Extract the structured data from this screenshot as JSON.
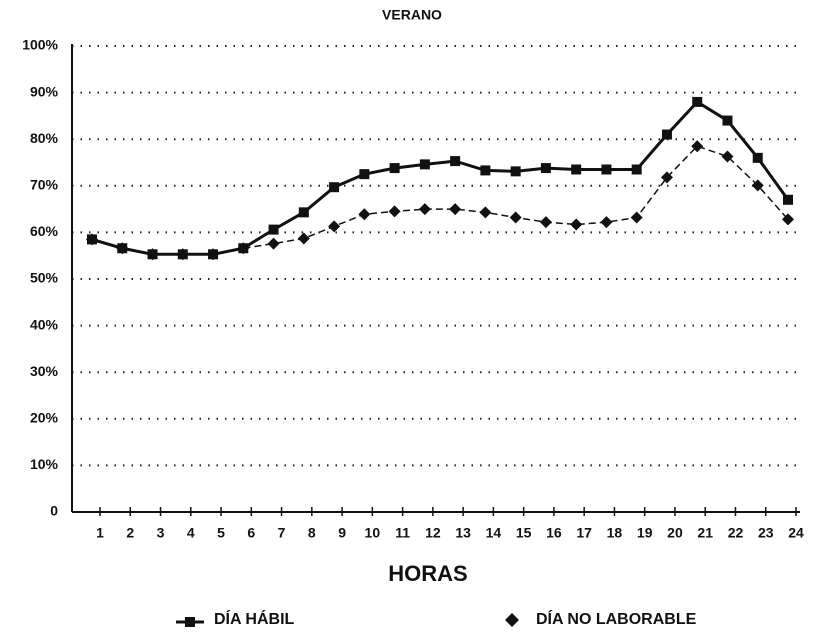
{
  "chart_data": {
    "type": "line",
    "title": "VERANO",
    "x_label": "HORAS",
    "categories": [
      "1",
      "2",
      "3",
      "4",
      "5",
      "6",
      "7",
      "8",
      "9",
      "10",
      "11",
      "12",
      "13",
      "14",
      "15",
      "16",
      "17",
      "18",
      "19",
      "20",
      "21",
      "22",
      "23",
      "24"
    ],
    "series": [
      {
        "name": "DÍA HÁBIL",
        "color": "#111111",
        "marker": "square",
        "values": [
          58.5,
          56.6,
          55.3,
          55.3,
          55.3,
          56.6,
          60.6,
          64.3,
          69.7,
          72.5,
          73.8,
          74.6,
          75.3,
          73.3,
          73.1,
          73.8,
          73.5,
          73.5,
          73.5,
          81,
          88,
          84,
          76,
          67
        ]
      },
      {
        "name": "DÍA NO LABORABLE",
        "color": "#111111",
        "marker": "diamond",
        "values": [
          58.5,
          56.6,
          55.3,
          55.3,
          55.3,
          56.6,
          57.6,
          58.7,
          61.3,
          63.9,
          64.5,
          65,
          65,
          64.3,
          63.2,
          62.2,
          61.7,
          62.2,
          63.2,
          71.8,
          78.5,
          76.3,
          70.1,
          62.8
        ]
      }
    ],
    "ylim": [
      0,
      100
    ],
    "yticks": [
      0,
      {
        "value": 10,
        "label": "10%"
      },
      {
        "value": 20,
        "label": "20%"
      },
      {
        "value": 30,
        "label": "30%"
      },
      {
        "value": 40,
        "label": "40%"
      },
      {
        "value": 50,
        "label": "50%"
      },
      {
        "value": 60,
        "label": "60%"
      },
      {
        "value": 70,
        "label": "70%"
      },
      {
        "value": 80,
        "label": "80%"
      },
      {
        "value": 90,
        "label": "90%"
      },
      {
        "value": 100,
        "label": "100%"
      }
    ],
    "grid": true
  }
}
